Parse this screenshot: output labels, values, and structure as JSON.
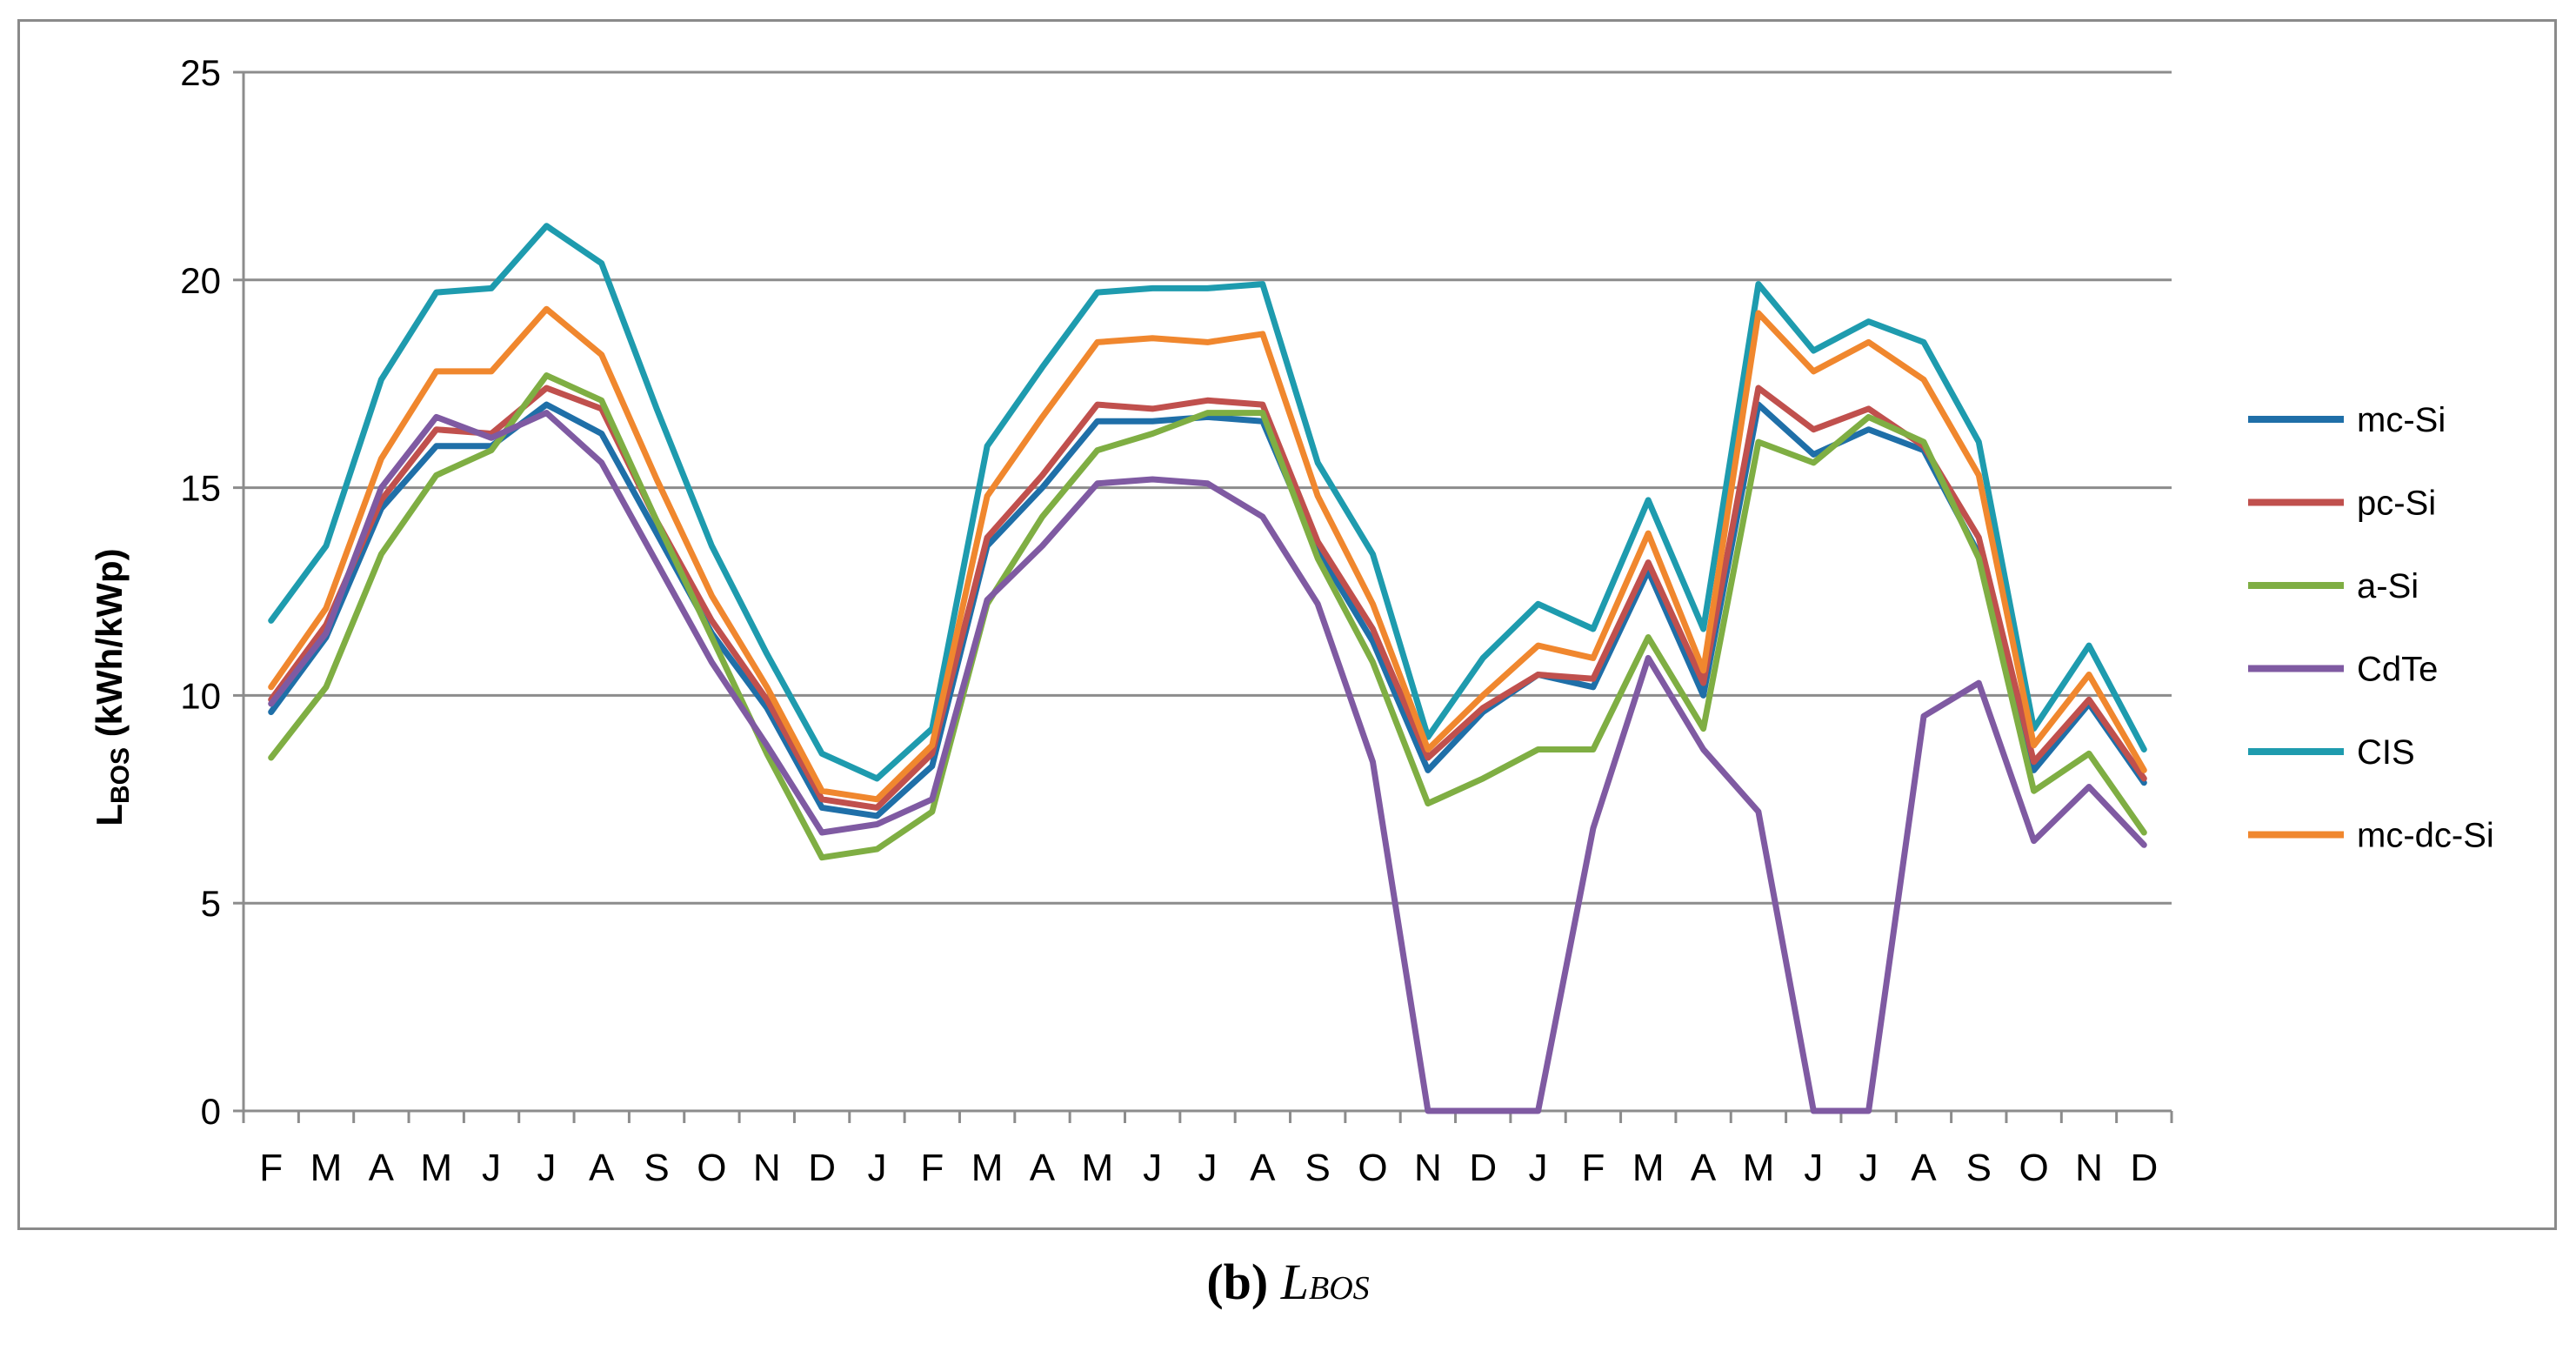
{
  "chart_data": {
    "type": "line",
    "title": "",
    "ylabel_main": "L",
    "ylabel_sub": "BOS",
    "ylabel_unit": " (kWh/kWp)",
    "xlabel": "",
    "ylim": [
      0,
      25
    ],
    "yticks": [
      0,
      5,
      10,
      15,
      20,
      25
    ],
    "grid": true,
    "legend_position": "right",
    "categories": [
      "F",
      "M",
      "A",
      "M",
      "J",
      "J",
      "A",
      "S",
      "O",
      "N",
      "D",
      "J",
      "F",
      "M",
      "A",
      "M",
      "J",
      "J",
      "A",
      "S",
      "O",
      "N",
      "D",
      "J",
      "F",
      "M",
      "A",
      "M",
      "J",
      "J",
      "A",
      "S",
      "O",
      "N",
      "D"
    ],
    "series": [
      {
        "name": "mc-Si",
        "color": "#1F6FA8",
        "values": [
          9.6,
          11.4,
          14.5,
          16.0,
          16.0,
          17.0,
          16.3,
          13.9,
          11.5,
          9.7,
          7.3,
          7.1,
          8.3,
          13.6,
          15.0,
          16.6,
          16.6,
          16.7,
          16.6,
          13.5,
          11.3,
          8.2,
          9.6,
          10.5,
          10.2,
          13.0,
          10.0,
          17.0,
          15.8,
          16.4,
          15.9,
          13.4,
          8.2,
          9.8,
          7.9
        ]
      },
      {
        "name": "pc-Si",
        "color": "#C0504D",
        "values": [
          9.9,
          11.7,
          14.7,
          16.4,
          16.3,
          17.4,
          16.9,
          14.2,
          11.8,
          9.9,
          7.5,
          7.3,
          8.6,
          13.8,
          15.3,
          17.0,
          16.9,
          17.1,
          17.0,
          13.7,
          11.6,
          8.5,
          9.7,
          10.5,
          10.4,
          13.2,
          10.3,
          17.4,
          16.4,
          16.9,
          16.0,
          13.8,
          8.4,
          9.9,
          8.0
        ]
      },
      {
        "name": "a-Si",
        "color": "#7FAE43",
        "values": [
          8.5,
          10.2,
          13.4,
          15.3,
          15.9,
          17.7,
          17.1,
          14.2,
          11.4,
          8.6,
          6.1,
          6.3,
          7.2,
          12.2,
          14.3,
          15.9,
          16.3,
          16.8,
          16.8,
          13.3,
          10.8,
          7.4,
          8.0,
          8.7,
          8.7,
          11.4,
          9.2,
          16.1,
          15.6,
          16.7,
          16.1,
          13.3,
          7.7,
          8.6,
          6.7
        ]
      },
      {
        "name": "CdTe",
        "color": "#7F5AA2",
        "values": [
          9.8,
          11.5,
          15.0,
          16.7,
          16.2,
          16.8,
          15.6,
          13.2,
          10.8,
          8.8,
          6.7,
          6.9,
          7.5,
          12.3,
          13.6,
          15.1,
          15.2,
          15.1,
          14.3,
          12.2,
          8.4,
          0,
          0,
          0,
          6.8,
          10.9,
          8.7,
          7.2,
          0,
          0,
          9.5,
          10.3,
          6.5,
          7.8,
          6.4
        ]
      },
      {
        "name": "CIS",
        "color": "#1E9BAE",
        "values": [
          11.8,
          13.6,
          17.6,
          19.7,
          19.8,
          21.3,
          20.4,
          16.9,
          13.6,
          11.0,
          8.6,
          8.0,
          9.2,
          16.0,
          17.9,
          19.7,
          19.8,
          19.8,
          19.9,
          15.6,
          13.4,
          9.0,
          10.9,
          12.2,
          11.6,
          14.7,
          11.6,
          19.9,
          18.3,
          19.0,
          18.5,
          16.1,
          9.2,
          11.2,
          8.7
        ]
      },
      {
        "name": "mc-dc-Si",
        "color": "#F0872E",
        "values": [
          10.2,
          12.1,
          15.7,
          17.8,
          17.8,
          19.3,
          18.2,
          15.2,
          12.4,
          10.2,
          7.7,
          7.5,
          8.8,
          14.8,
          16.7,
          18.5,
          18.6,
          18.5,
          18.7,
          14.8,
          12.2,
          8.7,
          10.0,
          11.2,
          10.9,
          13.9,
          10.6,
          19.2,
          17.8,
          18.5,
          17.6,
          15.3,
          8.8,
          10.5,
          8.2
        ]
      }
    ]
  },
  "caption": {
    "label": "(b)",
    "var": "L",
    "sub": "BOS"
  }
}
